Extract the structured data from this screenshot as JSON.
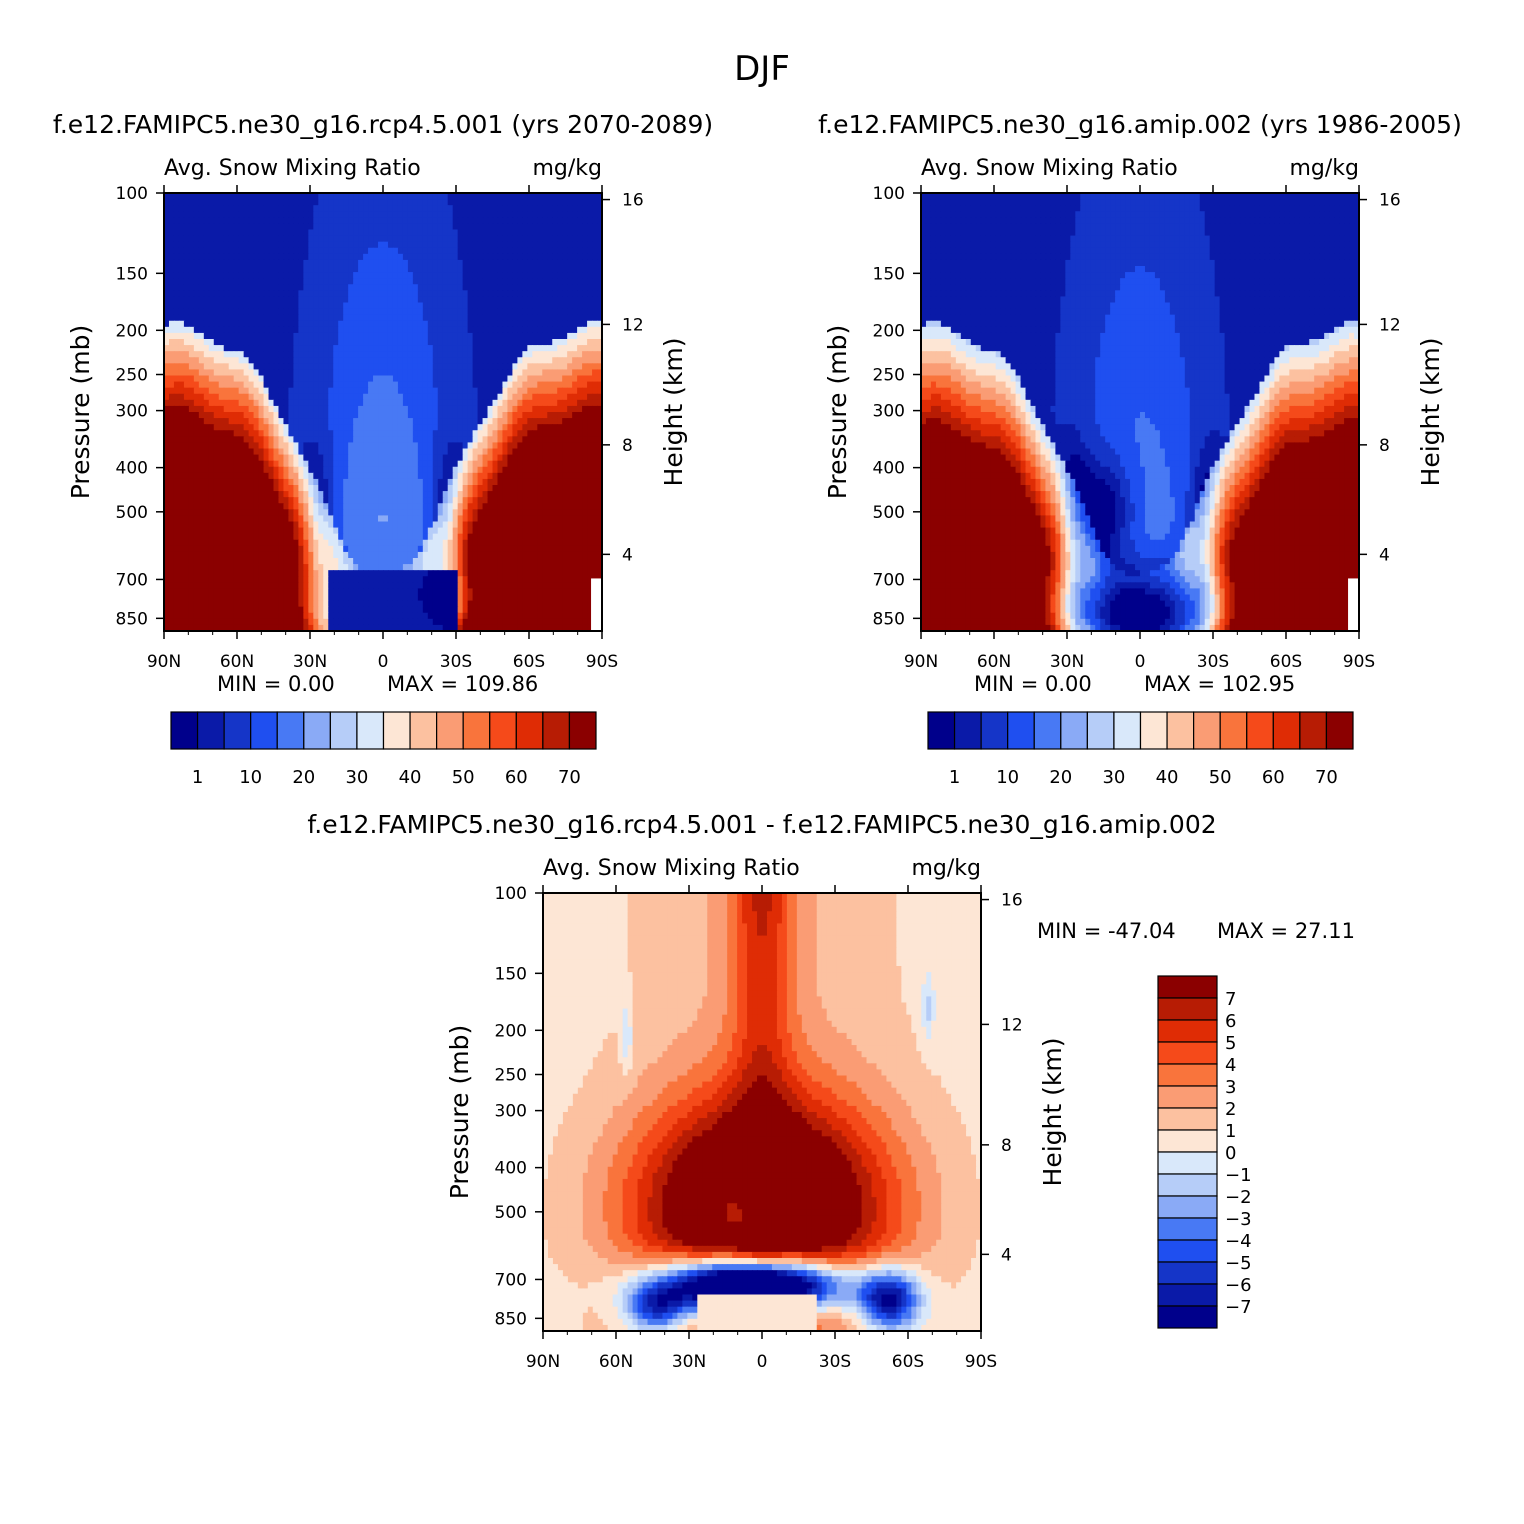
{
  "figure_title": "DJF",
  "chart_data": [
    {
      "id": "left",
      "type": "heatmap",
      "title": "f.e12.FAMIPC5.ne30_g16.rcp4.5.001 (yrs 2070-2089)",
      "variable_label": "Avg. Snow Mixing Ratio",
      "units_label": "mg/kg",
      "ylabel": "Pressure (mb)",
      "ylabel_right": "Height (km)",
      "x_ticks": [
        "90N",
        "60N",
        "30N",
        "0",
        "30S",
        "60S",
        "90S"
      ],
      "y_ticks": [
        "100",
        "150",
        "200",
        "250",
        "300",
        "400",
        "500",
        "700",
        "850"
      ],
      "y_right_ticks": [
        "16",
        "12",
        "8",
        "4"
      ],
      "min_text": "MIN =    0.00",
      "max_text": "MAX = 109.86",
      "min": 0.0,
      "max": 109.86,
      "contour_levels": [
        1,
        5,
        10,
        15,
        20,
        25,
        30,
        35,
        40,
        45,
        50,
        55,
        60,
        65,
        70
      ],
      "colorbar_labels": [
        "1",
        "10",
        "20",
        "30",
        "40",
        "50",
        "60",
        "70"
      ],
      "colors": [
        "#00008b",
        "#0a1aa8",
        "#1535c8",
        "#1f4ff0",
        "#4879f4",
        "#8aaaf6",
        "#b6cdf8",
        "#d9e8fa",
        "#fde6d5",
        "#fcc1a0",
        "#fa9c74",
        "#f9743c",
        "#f54a1a",
        "#df2c05",
        "#b71c04",
        "#8b0000"
      ]
    },
    {
      "id": "right",
      "type": "heatmap",
      "title": "f.e12.FAMIPC5.ne30_g16.amip.002 (yrs 1986-2005)",
      "variable_label": "Avg. Snow Mixing Ratio",
      "units_label": "mg/kg",
      "ylabel": "Pressure (mb)",
      "ylabel_right": "Height (km)",
      "x_ticks": [
        "90N",
        "60N",
        "30N",
        "0",
        "30S",
        "60S",
        "90S"
      ],
      "y_ticks": [
        "100",
        "150",
        "200",
        "250",
        "300",
        "400",
        "500",
        "700",
        "850"
      ],
      "y_right_ticks": [
        "16",
        "12",
        "8",
        "4"
      ],
      "min_text": "MIN =    0.00",
      "max_text": "MAX = 102.95",
      "min": 0.0,
      "max": 102.95,
      "contour_levels": [
        1,
        5,
        10,
        15,
        20,
        25,
        30,
        35,
        40,
        45,
        50,
        55,
        60,
        65,
        70
      ],
      "colorbar_labels": [
        "1",
        "10",
        "20",
        "30",
        "40",
        "50",
        "60",
        "70"
      ],
      "colors": [
        "#00008b",
        "#0a1aa8",
        "#1535c8",
        "#1f4ff0",
        "#4879f4",
        "#8aaaf6",
        "#b6cdf8",
        "#d9e8fa",
        "#fde6d5",
        "#fcc1a0",
        "#fa9c74",
        "#f9743c",
        "#f54a1a",
        "#df2c05",
        "#b71c04",
        "#8b0000"
      ]
    },
    {
      "id": "diff",
      "type": "heatmap",
      "title": "f.e12.FAMIPC5.ne30_g16.rcp4.5.001 - f.e12.FAMIPC5.ne30_g16.amip.002",
      "variable_label": "Avg. Snow Mixing Ratio",
      "units_label": "mg/kg",
      "ylabel": "Pressure (mb)",
      "ylabel_right": "Height (km)",
      "x_ticks": [
        "90N",
        "60N",
        "30N",
        "0",
        "30S",
        "60S",
        "90S"
      ],
      "y_ticks": [
        "100",
        "150",
        "200",
        "250",
        "300",
        "400",
        "500",
        "700",
        "850"
      ],
      "y_right_ticks": [
        "16",
        "12",
        "8",
        "4"
      ],
      "min_text": "MIN = -47.04",
      "max_text": "MAX =   27.11",
      "min": -47.04,
      "max": 27.11,
      "contour_levels": [
        -7,
        -6,
        -5,
        -4,
        -3,
        -2,
        -1,
        0,
        1,
        2,
        3,
        4,
        5,
        6,
        7
      ],
      "colorbar_labels": [
        "7",
        "6",
        "5",
        "4",
        "3",
        "2",
        "1",
        "0",
        "-1",
        "-2",
        "-3",
        "-4",
        "-5",
        "-6",
        "-7"
      ],
      "colors": [
        "#00008b",
        "#0a1aa8",
        "#1535c8",
        "#1f4ff0",
        "#4879f4",
        "#8aaaf6",
        "#b6cdf8",
        "#d9e8fa",
        "#fde6d5",
        "#fcc1a0",
        "#fa9c74",
        "#f9743c",
        "#f54a1a",
        "#df2c05",
        "#b71c04",
        "#8b0000"
      ]
    }
  ]
}
